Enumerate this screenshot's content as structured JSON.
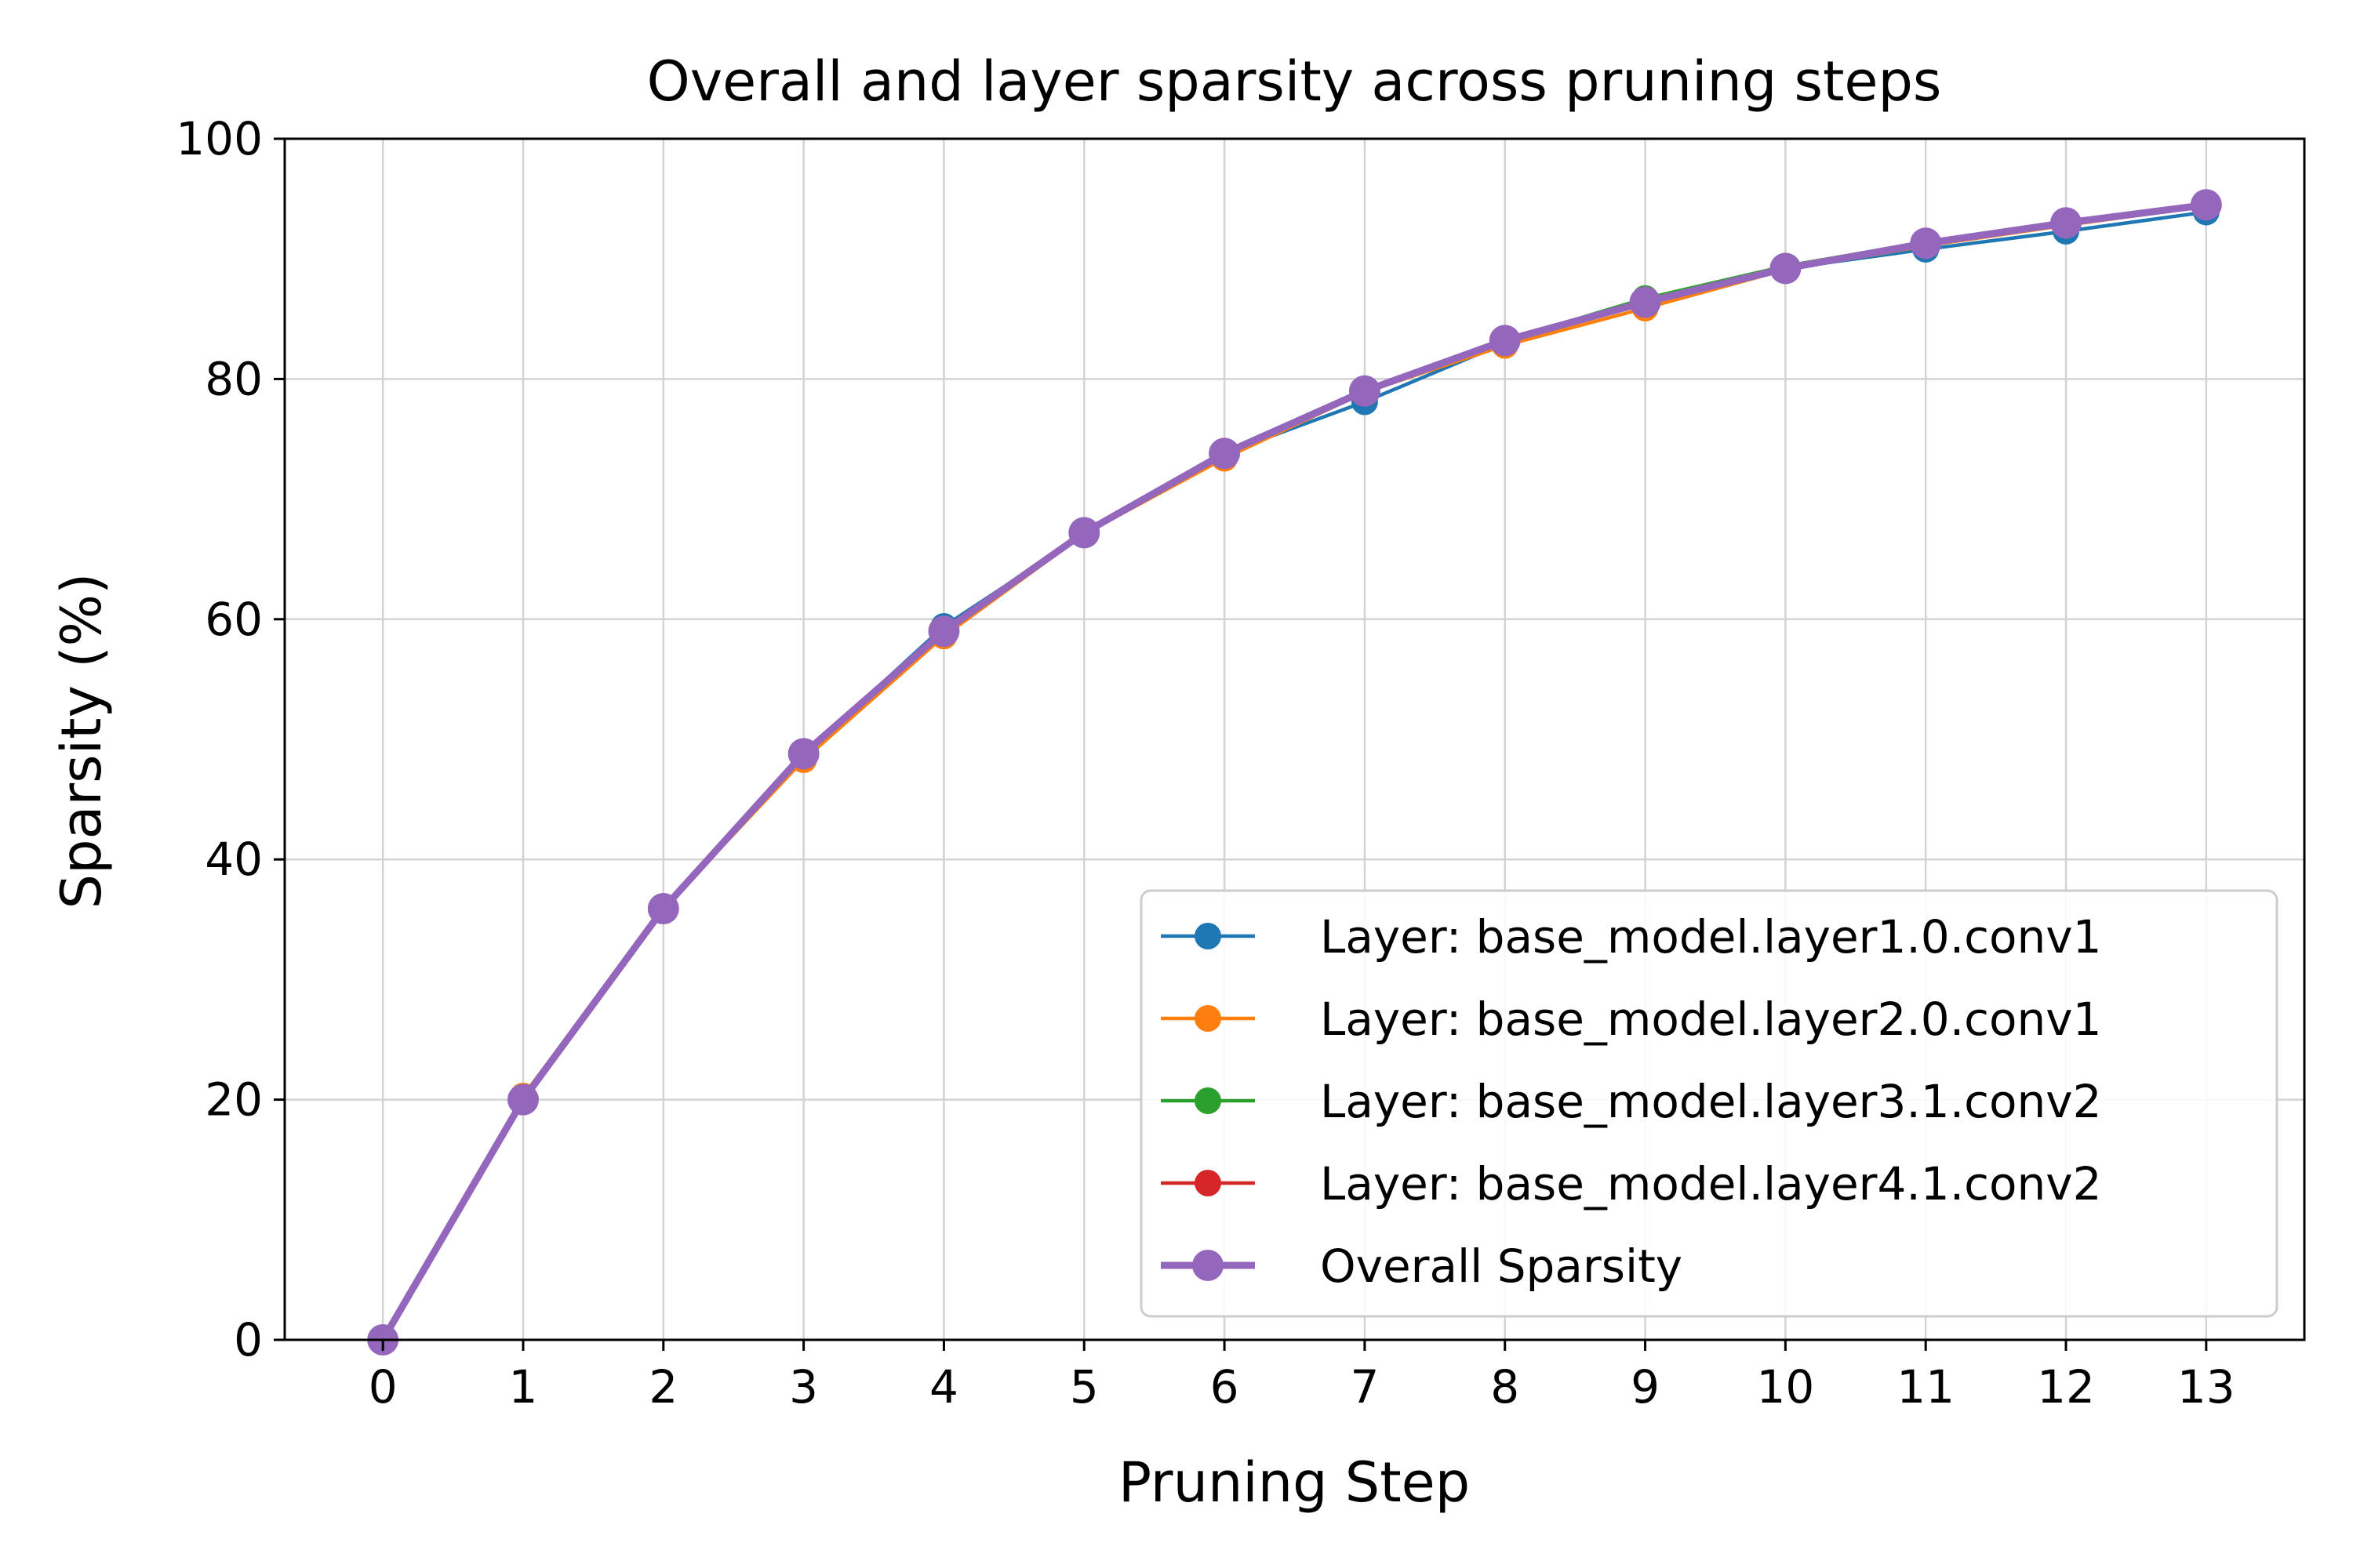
{
  "chart_data": {
    "type": "line",
    "title": "Overall and layer sparsity across pruning steps",
    "xlabel": "Pruning Step",
    "ylabel": "Sparsity (%)",
    "x": [
      0,
      1,
      2,
      3,
      4,
      5,
      6,
      7,
      8,
      9,
      10,
      11,
      12,
      13
    ],
    "xlim": [
      -0.7,
      13.7
    ],
    "ylim": [
      0,
      100
    ],
    "xticks": [
      0,
      1,
      2,
      3,
      4,
      5,
      6,
      7,
      8,
      9,
      10,
      11,
      12,
      13
    ],
    "yticks": [
      0,
      20,
      40,
      60,
      80,
      100
    ],
    "grid": true,
    "legend_position": "lower-right",
    "series": [
      {
        "name": "Layer: base_model.layer1.0.conv1",
        "color": "#1f77b4",
        "values": [
          0,
          20.1,
          35.9,
          48.7,
          59.4,
          67.1,
          73.8,
          78.1,
          83.0,
          86.6,
          89.2,
          90.8,
          92.3,
          93.9
        ]
      },
      {
        "name": "Layer: base_model.layer2.0.conv1",
        "color": "#ff7f0e",
        "values": [
          0,
          20.3,
          35.9,
          48.3,
          58.6,
          67.1,
          73.4,
          78.9,
          82.8,
          85.9,
          89.1,
          91.1,
          92.8,
          94.4
        ]
      },
      {
        "name": "Layer: base_model.layer3.1.conv2",
        "color": "#2ca02c",
        "values": [
          0,
          20.0,
          35.9,
          48.8,
          59.0,
          67.2,
          73.8,
          79.0,
          83.2,
          86.7,
          89.4,
          91.4,
          93.1,
          94.5
        ]
      },
      {
        "name": "Layer: base_model.layer4.1.conv2",
        "color": "#d62728",
        "values": [
          0,
          20.0,
          35.9,
          48.8,
          59.0,
          67.2,
          73.8,
          79.0,
          83.2,
          86.5,
          89.2,
          91.3,
          93.0,
          94.4
        ]
      },
      {
        "name": "Overall Sparsity",
        "color": "#9467bd",
        "values": [
          0,
          20.0,
          35.9,
          48.8,
          59.0,
          67.2,
          73.8,
          79.0,
          83.2,
          86.4,
          89.2,
          91.3,
          93.0,
          94.5
        ]
      }
    ]
  }
}
